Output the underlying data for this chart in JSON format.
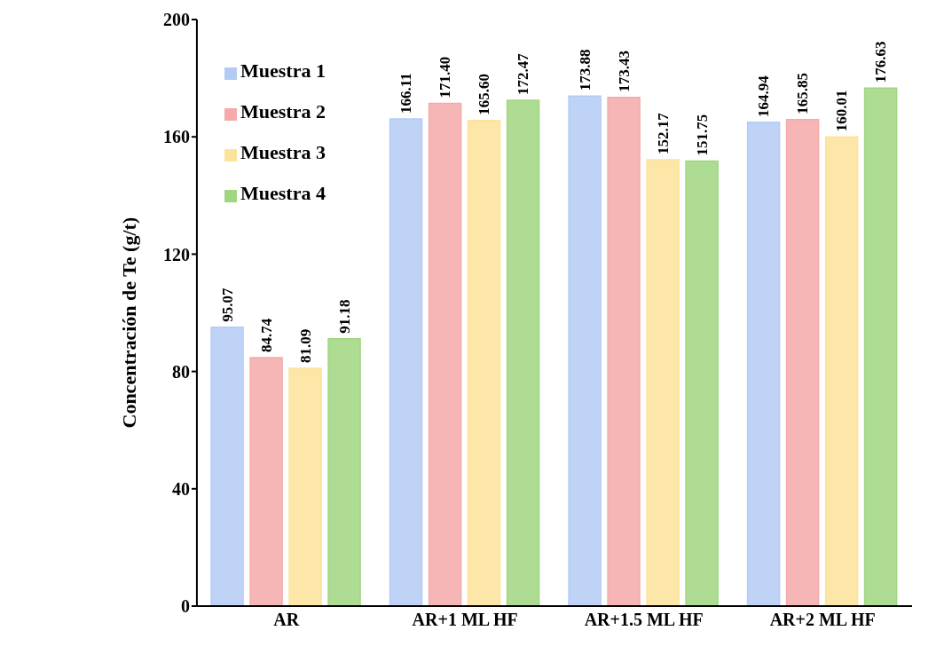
{
  "chart_data": {
    "type": "bar",
    "ylabel": "Concentración de Te (g/t)",
    "categories": [
      "AR",
      "AR+1 ML HF",
      "AR+1.5 ML HF",
      "AR+2 ML HF"
    ],
    "series": [
      {
        "name": "Muestra 1",
        "color": "#b4cbf5",
        "values": [
          95.07,
          166.11,
          173.88,
          164.94
        ],
        "value_labels": [
          "95.07",
          "166.11",
          "173.88",
          "164.94"
        ]
      },
      {
        "name": "Muestra 2",
        "color": "#f5a9a9",
        "values": [
          84.74,
          171.4,
          173.43,
          165.85
        ],
        "value_labels": [
          "84.74",
          "171.40",
          "173.43",
          "165.85"
        ]
      },
      {
        "name": "Muestra 3",
        "color": "#fbe39a",
        "values": [
          81.09,
          165.6,
          152.17,
          160.01
        ],
        "value_labels": [
          "81.09",
          "165.60",
          "152.17",
          "160.01"
        ]
      },
      {
        "name": "Muestra 4",
        "color": "#9fd67f",
        "values": [
          91.18,
          172.47,
          151.75,
          176.63
        ],
        "value_labels": [
          "91.18",
          "172.47",
          "151.75",
          "176.63"
        ]
      }
    ],
    "ylim": [
      0,
      200
    ],
    "yticks": [
      0,
      40,
      80,
      120,
      160,
      200
    ],
    "legend": "top left"
  }
}
